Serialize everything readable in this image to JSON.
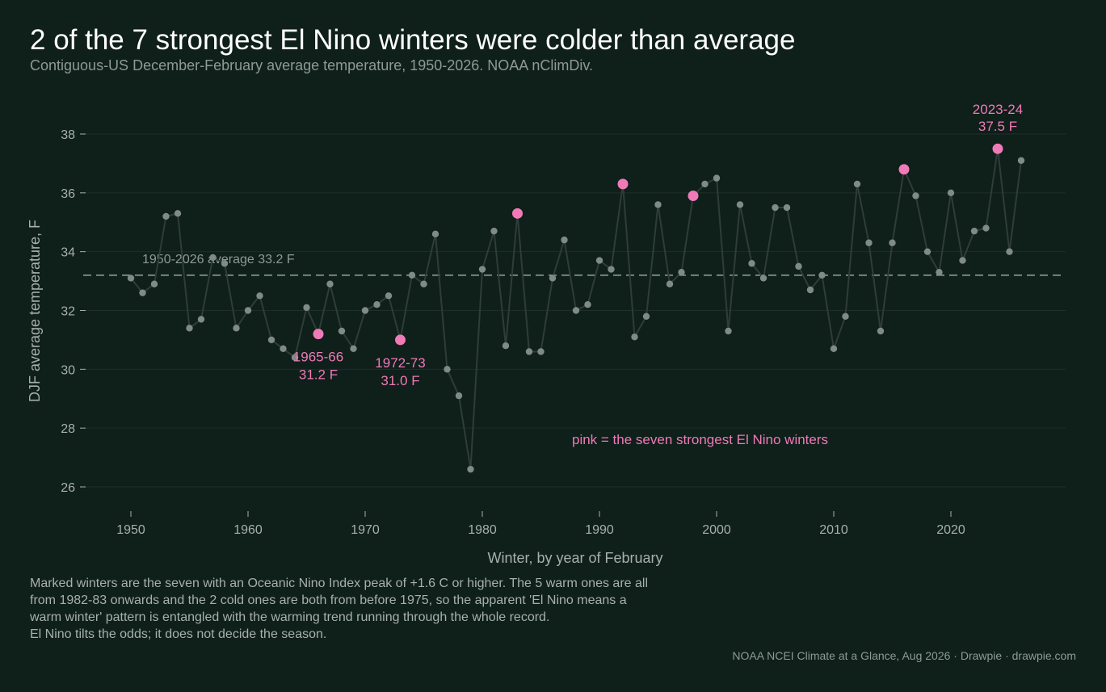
{
  "header": {
    "title": "2 of the 7 strongest El Nino winters were colder than average",
    "subtitle": "Contiguous-US December-February average temperature, 1950-2026. NOAA nClimDiv."
  },
  "footer": {
    "note_lines": [
      "Marked winters are the seven with an Oceanic Nino Index peak of +1.6 C or higher. The 5 warm ones are all",
      "from 1982-83 onwards and the 2 cold ones are both from before 1975, so the apparent 'El Nino means a",
      "warm winter' pattern is entangled with the warming trend running through the whole record.",
      "El Nino tilts the odds; it does not decide the season."
    ],
    "credit": "NOAA NCEI Climate at a Glance, Aug 2026  ·  Drawpie · drawpie.com"
  },
  "colors": {
    "background": "#0f1f1a",
    "line": "#2f3d38",
    "point": "#7f8b86",
    "highlight": "#f07ab7",
    "average_line": "#8e9a95",
    "grid": "#1f2f29",
    "tick_text": "#a7b0ac"
  },
  "chart_data": {
    "type": "line",
    "xlabel": "Winter, by year of February",
    "ylabel": "DJF average temperature, F",
    "xlim": [
      1945.5,
      2028.5
    ],
    "ylim": [
      25.3,
      38.6
    ],
    "x_ticks": [
      1950,
      1960,
      1970,
      1980,
      1990,
      2000,
      2010,
      2020
    ],
    "y_ticks": [
      26,
      28,
      30,
      32,
      34,
      36,
      38
    ],
    "grid": "horizontal",
    "average": {
      "value": 33.2,
      "label": "1950-2026 average  33.2 F"
    },
    "legend_note": "pink = the seven strongest El Nino winters",
    "series": [
      {
        "x": [
          1950,
          1951,
          1952,
          1953,
          1954,
          1955,
          1956,
          1957,
          1958,
          1959,
          1960,
          1961,
          1962,
          1963,
          1964,
          1965,
          1966,
          1967,
          1968,
          1969,
          1970,
          1971,
          1972,
          1973,
          1974,
          1975,
          1976,
          1977,
          1978,
          1979,
          1980,
          1981,
          1982,
          1983,
          1984,
          1985,
          1986,
          1987,
          1988,
          1989,
          1990,
          1991,
          1992,
          1993,
          1994,
          1995,
          1996,
          1997,
          1998,
          1999,
          2000,
          2001,
          2002,
          2003,
          2004,
          2005,
          2006,
          2007,
          2008,
          2009,
          2010,
          2011,
          2012,
          2013,
          2014,
          2015,
          2016,
          2017,
          2018,
          2019,
          2020,
          2021,
          2022,
          2023,
          2024,
          2025,
          2026
        ],
        "y": [
          33.1,
          32.6,
          32.9,
          35.2,
          35.3,
          31.4,
          31.7,
          33.8,
          33.6,
          31.4,
          32.0,
          32.5,
          31.0,
          30.7,
          30.4,
          32.1,
          31.2,
          32.9,
          31.3,
          30.7,
          32.0,
          32.2,
          32.5,
          31.0,
          33.2,
          32.9,
          34.6,
          30.0,
          29.1,
          26.6,
          33.4,
          34.7,
          30.8,
          35.3,
          30.6,
          30.6,
          33.1,
          34.4,
          32.0,
          32.2,
          33.7,
          33.4,
          36.3,
          31.1,
          31.8,
          35.6,
          32.9,
          33.3,
          35.9,
          36.3,
          36.5,
          31.3,
          35.6,
          33.6,
          33.1,
          35.5,
          35.5,
          33.5,
          32.7,
          33.2,
          30.7,
          31.8,
          36.3,
          34.3,
          31.3,
          34.3,
          36.8,
          35.9,
          34.0,
          33.3,
          36.0,
          33.7,
          34.7,
          34.8,
          37.5,
          34.0,
          37.1
        ]
      }
    ],
    "highlighted_winters": [
      1966,
      1973,
      1983,
      1992,
      1998,
      2016,
      2024
    ],
    "annotations": [
      {
        "x": 1966,
        "season": "1965-66",
        "value": "31.2 F",
        "position": "below"
      },
      {
        "x": 1973,
        "season": "1972-73",
        "value": "31.0 F",
        "position": "below"
      },
      {
        "x": 2024,
        "season": "2023-24",
        "value": "37.5 F",
        "position": "above"
      }
    ]
  }
}
